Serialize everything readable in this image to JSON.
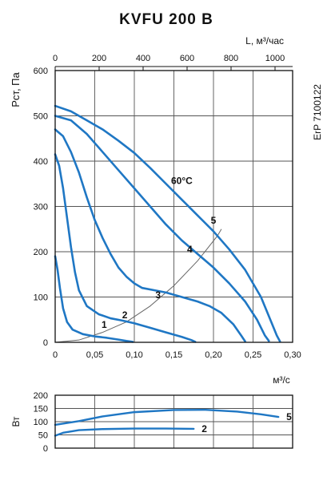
{
  "chart_data": [
    {
      "type": "line",
      "title": "KVFU 200 B",
      "side_label": "ErP 7100122",
      "ylabel": "Pст, Па",
      "xlabel_bottom": "м³/с",
      "xlabel_top": "L, м³/час",
      "x_ticks_bottom": [
        "0",
        "0,05",
        "0,10",
        "0,15",
        "0,20",
        "0,25",
        "0,30"
      ],
      "x_ticks_top": [
        "0",
        "200",
        "400",
        "600",
        "800",
        "1000"
      ],
      "y_ticks": [
        "0",
        "100",
        "200",
        "300",
        "400",
        "500",
        "600"
      ],
      "xlim": [
        0,
        0.3
      ],
      "xlim_top": [
        0,
        1080
      ],
      "ylim": [
        0,
        600
      ],
      "grid": true,
      "colors": {
        "curve": "#1f77c4",
        "system": "#666666",
        "axis": "#111111",
        "grid": "#555555"
      },
      "series": [
        {
          "name": "1",
          "points": [
            [
              0,
              190
            ],
            [
              0.003,
              160
            ],
            [
              0.006,
              120
            ],
            [
              0.01,
              75
            ],
            [
              0.015,
              45
            ],
            [
              0.022,
              28
            ],
            [
              0.035,
              18
            ],
            [
              0.05,
              13
            ],
            [
              0.065,
              10
            ],
            [
              0.08,
              6
            ],
            [
              0.09,
              3
            ],
            [
              0.098,
              1
            ]
          ]
        },
        {
          "name": "2",
          "points": [
            [
              0,
              415
            ],
            [
              0.005,
              390
            ],
            [
              0.01,
              340
            ],
            [
              0.015,
              275
            ],
            [
              0.02,
              210
            ],
            [
              0.025,
              155
            ],
            [
              0.03,
              115
            ],
            [
              0.04,
              80
            ],
            [
              0.055,
              62
            ],
            [
              0.07,
              53
            ],
            [
              0.085,
              48
            ],
            [
              0.1,
              42
            ],
            [
              0.12,
              32
            ],
            [
              0.14,
              22
            ],
            [
              0.16,
              12
            ],
            [
              0.172,
              5
            ],
            [
              0.177,
              1
            ]
          ]
        },
        {
          "name": "3",
          "points": [
            [
              0,
              470
            ],
            [
              0.01,
              455
            ],
            [
              0.02,
              420
            ],
            [
              0.03,
              375
            ],
            [
              0.04,
              320
            ],
            [
              0.05,
              270
            ],
            [
              0.06,
              230
            ],
            [
              0.07,
              195
            ],
            [
              0.08,
              165
            ],
            [
              0.09,
              145
            ],
            [
              0.1,
              130
            ],
            [
              0.11,
              120
            ],
            [
              0.125,
              115
            ],
            [
              0.14,
              110
            ],
            [
              0.16,
              100
            ],
            [
              0.18,
              90
            ],
            [
              0.195,
              80
            ],
            [
              0.21,
              65
            ],
            [
              0.225,
              40
            ],
            [
              0.235,
              15
            ],
            [
              0.24,
              2
            ]
          ]
        },
        {
          "name": "4",
          "points": [
            [
              0,
              500
            ],
            [
              0.02,
              490
            ],
            [
              0.04,
              460
            ],
            [
              0.06,
              420
            ],
            [
              0.08,
              380
            ],
            [
              0.1,
              340
            ],
            [
              0.12,
              300
            ],
            [
              0.14,
              260
            ],
            [
              0.16,
              225
            ],
            [
              0.18,
              195
            ],
            [
              0.2,
              165
            ],
            [
              0.22,
              130
            ],
            [
              0.24,
              90
            ],
            [
              0.255,
              50
            ],
            [
              0.265,
              15
            ],
            [
              0.27,
              3
            ]
          ]
        },
        {
          "name": "5",
          "points": [
            [
              0,
              522
            ],
            [
              0.02,
              510
            ],
            [
              0.04,
              490
            ],
            [
              0.06,
              470
            ],
            [
              0.08,
              445
            ],
            [
              0.1,
              418
            ],
            [
              0.12,
              385
            ],
            [
              0.14,
              350
            ],
            [
              0.16,
              315
            ],
            [
              0.18,
              280
            ],
            [
              0.2,
              245
            ],
            [
              0.22,
              205
            ],
            [
              0.24,
              160
            ],
            [
              0.26,
              100
            ],
            [
              0.273,
              45
            ],
            [
              0.28,
              15
            ],
            [
              0.284,
              2
            ]
          ]
        }
      ],
      "system_curve": {
        "points": [
          [
            0,
            0
          ],
          [
            0.03,
            5
          ],
          [
            0.06,
            22
          ],
          [
            0.09,
            45
          ],
          [
            0.12,
            80
          ],
          [
            0.15,
            125
          ],
          [
            0.18,
            180
          ],
          [
            0.205,
            235
          ],
          [
            0.21,
            250
          ]
        ]
      },
      "annotations": [
        {
          "text": "1",
          "x": 0.062,
          "y": 32
        },
        {
          "text": "2",
          "x": 0.088,
          "y": 53
        },
        {
          "text": "3",
          "x": 0.13,
          "y": 97
        },
        {
          "text": "4",
          "x": 0.17,
          "y": 198
        },
        {
          "text": "5",
          "x": 0.2,
          "y": 262
        },
        {
          "text": "60°C",
          "x": 0.16,
          "y": 350
        }
      ]
    },
    {
      "type": "line",
      "ylabel": "Вт",
      "y_ticks": [
        "0",
        "50",
        "100",
        "150",
        "200"
      ],
      "ylim": [
        0,
        200
      ],
      "xlim": [
        0,
        0.3
      ],
      "series": [
        {
          "name": "5",
          "points": [
            [
              0,
              88
            ],
            [
              0.03,
              102
            ],
            [
              0.06,
              120
            ],
            [
              0.1,
              136
            ],
            [
              0.15,
              144
            ],
            [
              0.19,
              145
            ],
            [
              0.23,
              138
            ],
            [
              0.26,
              128
            ],
            [
              0.282,
              118
            ]
          ]
        },
        {
          "name": "2",
          "points": [
            [
              0,
              47
            ],
            [
              0.01,
              58
            ],
            [
              0.03,
              68
            ],
            [
              0.06,
              72
            ],
            [
              0.1,
              74
            ],
            [
              0.14,
              74
            ],
            [
              0.175,
              73
            ]
          ]
        }
      ]
    }
  ]
}
